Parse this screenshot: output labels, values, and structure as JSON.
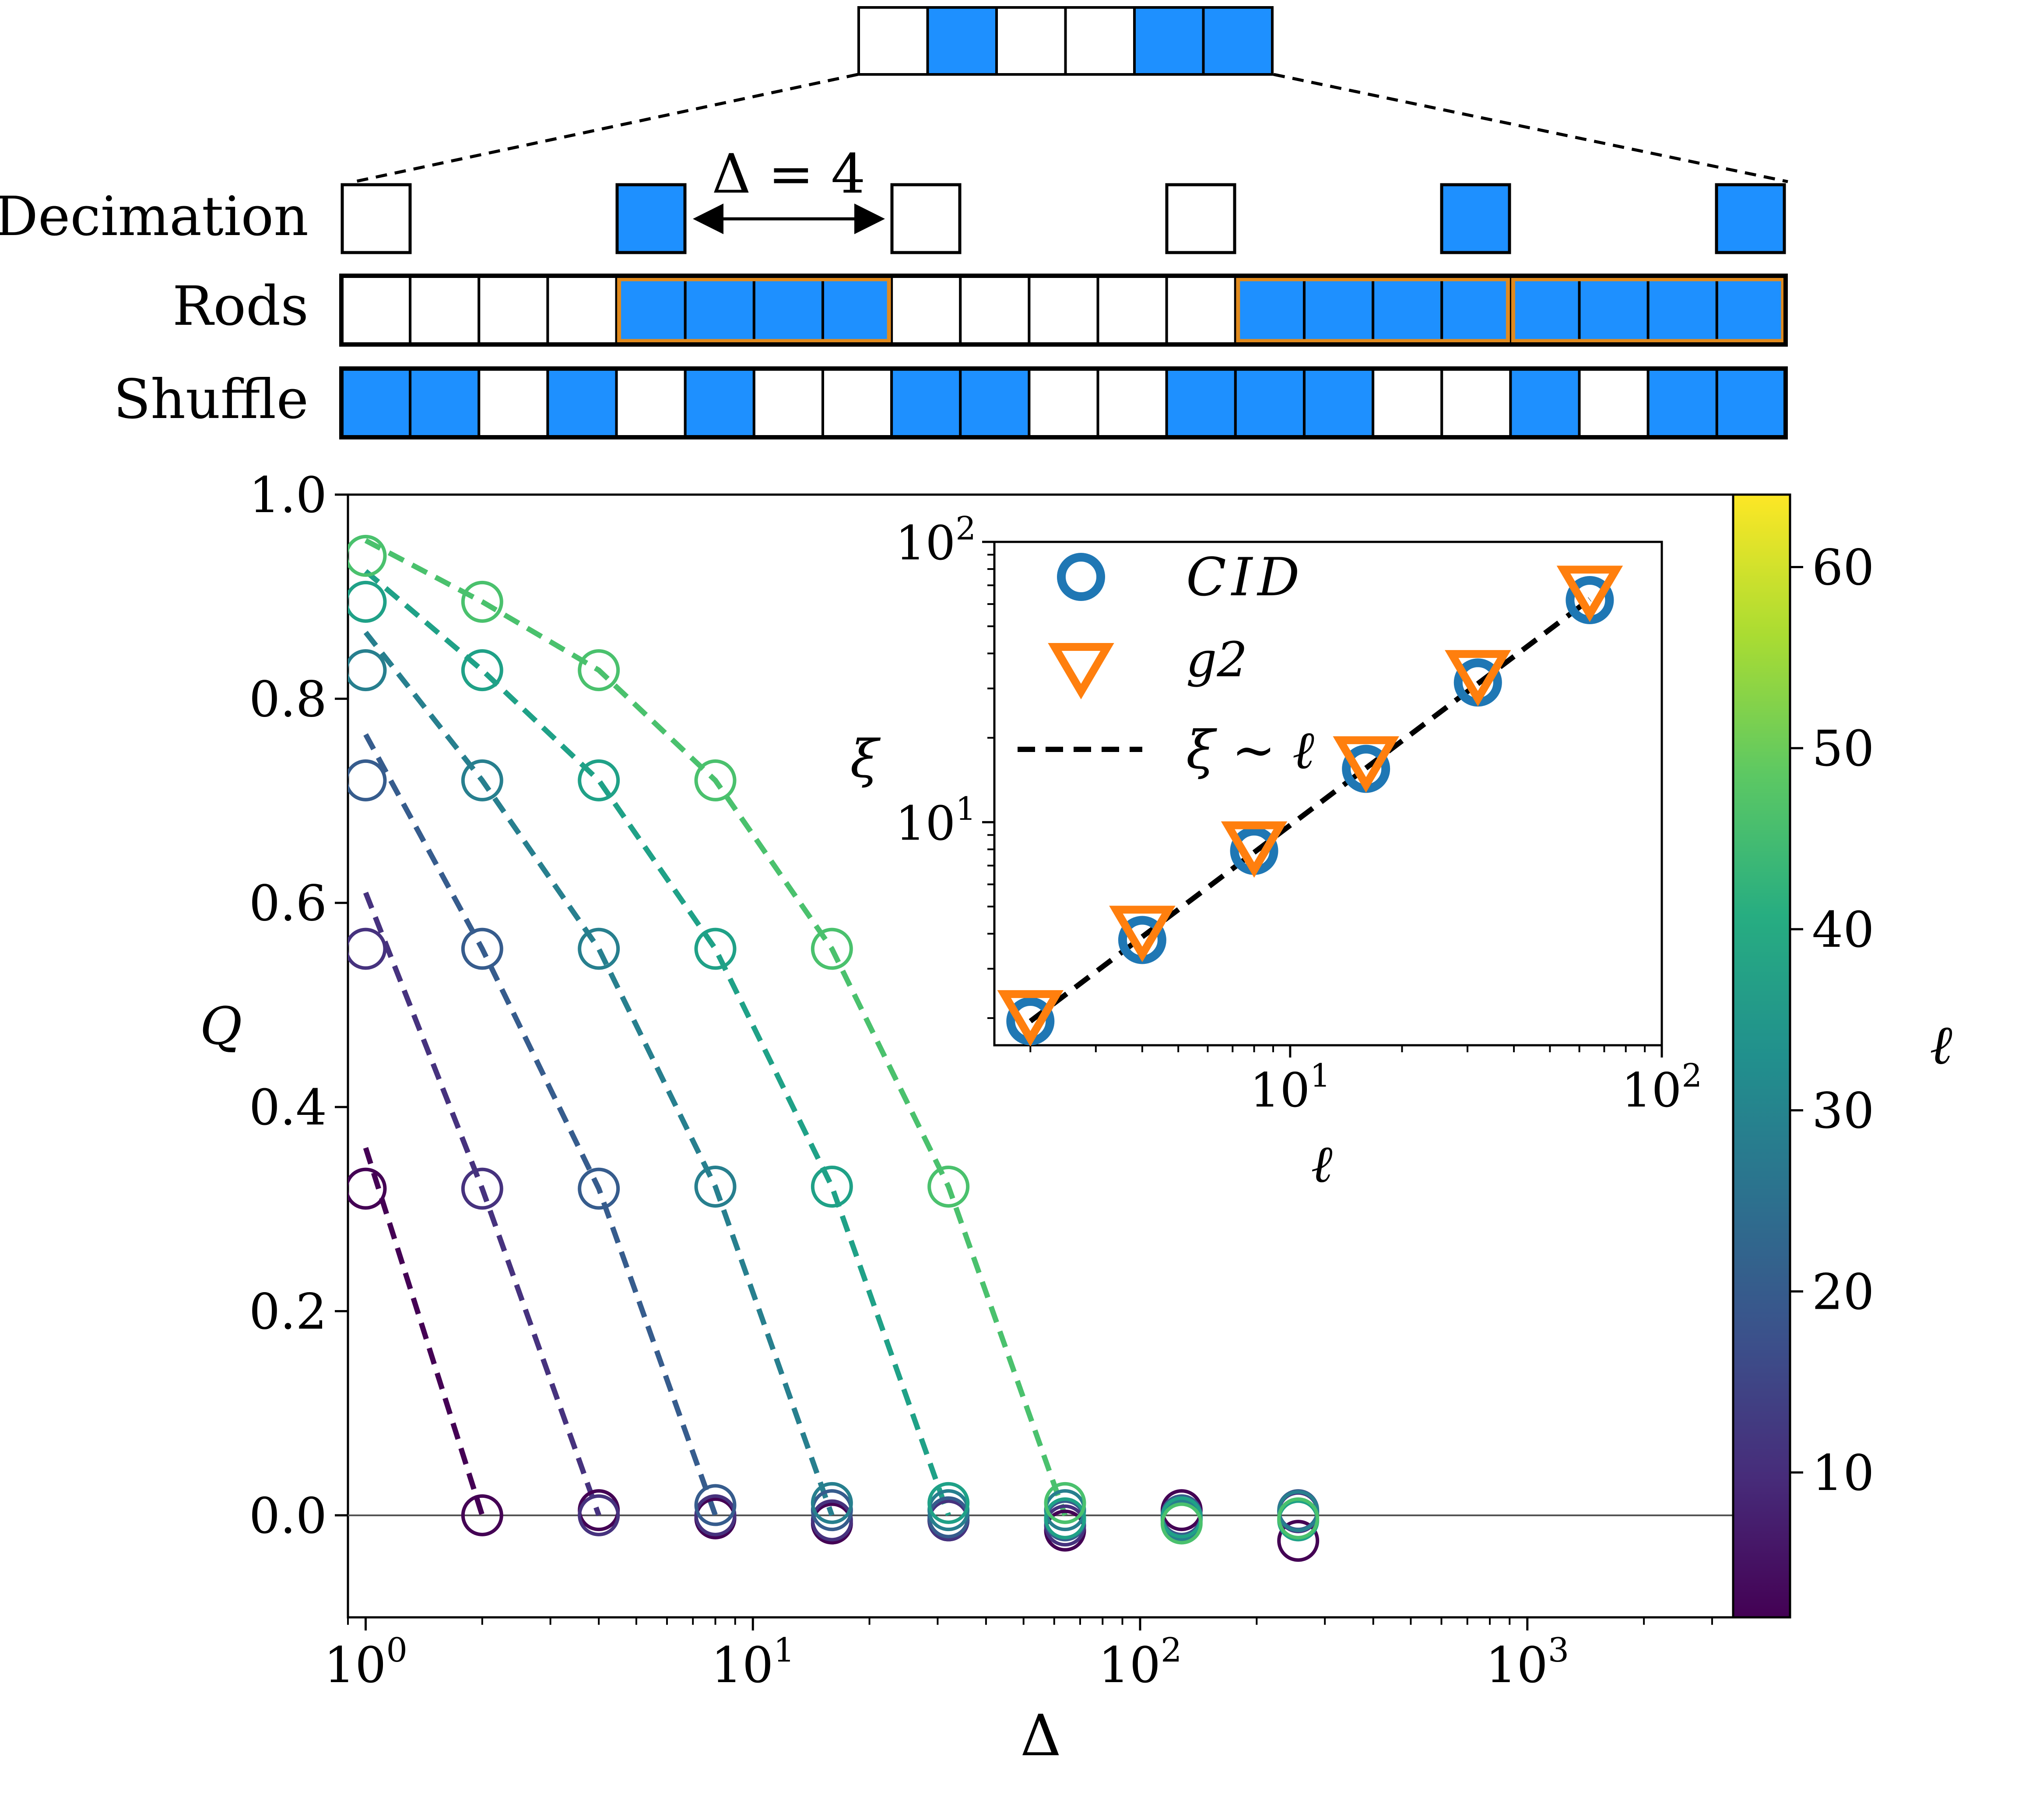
{
  "schematic": {
    "row_labels": [
      "Decimation",
      "Rods",
      "Shuffle"
    ],
    "delta_label": "Δ = 4",
    "top_sequence": [
      0,
      1,
      0,
      0,
      1,
      1
    ],
    "decimation_sequence": [
      0,
      1,
      0,
      0,
      1,
      1
    ],
    "rods_sequence": [
      0,
      0,
      0,
      0,
      1,
      1,
      1,
      1,
      0,
      0,
      0,
      0,
      0,
      1,
      1,
      1,
      1,
      1,
      1,
      1,
      1
    ],
    "rods_groups": [
      [
        4,
        7
      ],
      [
        13,
        16
      ],
      [
        17,
        20
      ]
    ],
    "shuffle_sequence": [
      1,
      1,
      0,
      1,
      0,
      1,
      0,
      0,
      1,
      1,
      0,
      0,
      1,
      1,
      1,
      0,
      0,
      1,
      0,
      1,
      1
    ],
    "colors": {
      "filled": "#1e90ff",
      "empty": "#ffffff",
      "rod_outline": "#e08a1e"
    }
  },
  "chart_data": [
    {
      "type": "scatter",
      "name": "main",
      "xlabel": "Δ",
      "ylabel": "Q",
      "xscale": "log",
      "xlim": [
        0.9,
        3400
      ],
      "ylim": [
        -0.1,
        1.0
      ],
      "xticks": [
        {
          "v": 1,
          "label": "10",
          "exp": "0"
        },
        {
          "v": 10,
          "label": "10",
          "exp": "1"
        },
        {
          "v": 100,
          "label": "10",
          "exp": "2"
        },
        {
          "v": 1000,
          "label": "10",
          "exp": "3"
        }
      ],
      "yticks": [
        "0.0",
        "0.2",
        "0.4",
        "0.6",
        "0.8",
        "1.0"
      ],
      "colorbar": {
        "label": "ℓ",
        "range": [
          2,
          64
        ],
        "ticks": [
          "10",
          "20",
          "30",
          "40",
          "50",
          "60"
        ]
      },
      "series": [
        {
          "ell": 2,
          "color": "#440154",
          "points": [
            [
              1,
              0.32
            ],
            [
              2,
              0.0
            ],
            [
              4,
              0.005
            ],
            [
              8,
              -0.003
            ],
            [
              16,
              -0.008
            ],
            [
              32,
              -0.005
            ],
            [
              64,
              -0.015
            ],
            [
              128,
              0.005
            ],
            [
              256,
              -0.025
            ]
          ],
          "fit": [
            [
              1,
              0.36
            ],
            [
              2,
              0.0
            ]
          ]
        },
        {
          "ell": 4,
          "color": "#46327e",
          "points": [
            [
              1,
              0.555
            ],
            [
              2,
              0.32
            ],
            [
              4,
              0.0
            ],
            [
              8,
              0.0
            ],
            [
              16,
              -0.005
            ],
            [
              32,
              -0.005
            ],
            [
              64,
              -0.01
            ],
            [
              128,
              -0.003
            ],
            [
              256,
              0.003
            ]
          ],
          "fit": [
            [
              1,
              0.61
            ],
            [
              2,
              0.32
            ],
            [
              4,
              0.0
            ]
          ]
        },
        {
          "ell": 8,
          "color": "#365c8d",
          "points": [
            [
              1,
              0.72
            ],
            [
              2,
              0.555
            ],
            [
              4,
              0.32
            ],
            [
              8,
              0.01
            ],
            [
              16,
              0.005
            ],
            [
              32,
              -0.002
            ],
            [
              64,
              -0.005
            ],
            [
              128,
              0.0
            ],
            [
              256,
              0.005
            ]
          ],
          "fit": [
            [
              1,
              0.765
            ],
            [
              2,
              0.555
            ],
            [
              4,
              0.32
            ],
            [
              8,
              0.0
            ]
          ]
        },
        {
          "ell": 16,
          "color": "#277f8e",
          "points": [
            [
              1,
              0.828
            ],
            [
              2,
              0.72
            ],
            [
              4,
              0.555
            ],
            [
              8,
              0.322
            ],
            [
              16,
              0.012
            ],
            [
              32,
              0.005
            ],
            [
              64,
              0.005
            ],
            [
              128,
              -0.005
            ],
            [
              256,
              0.004
            ]
          ],
          "fit": [
            [
              1,
              0.865
            ],
            [
              2,
              0.72
            ],
            [
              4,
              0.555
            ],
            [
              8,
              0.322
            ],
            [
              16,
              0.0
            ]
          ]
        },
        {
          "ell": 32,
          "color": "#1fa187",
          "points": [
            [
              1,
              0.895
            ],
            [
              2,
              0.828
            ],
            [
              4,
              0.72
            ],
            [
              8,
              0.555
            ],
            [
              16,
              0.322
            ],
            [
              32,
              0.012
            ],
            [
              64,
              -0.003
            ],
            [
              128,
              -0.002
            ],
            [
              256,
              -0.005
            ]
          ],
          "fit": [
            [
              1,
              0.925
            ],
            [
              2,
              0.828
            ],
            [
              4,
              0.72
            ],
            [
              8,
              0.555
            ],
            [
              16,
              0.322
            ],
            [
              32,
              0.0
            ]
          ]
        },
        {
          "ell": 64,
          "color": "#4ac16d",
          "points": [
            [
              1,
              0.94
            ],
            [
              2,
              0.895
            ],
            [
              4,
              0.828
            ],
            [
              8,
              0.72
            ],
            [
              16,
              0.555
            ],
            [
              32,
              0.322
            ],
            [
              64,
              0.012
            ],
            [
              128,
              -0.008
            ],
            [
              256,
              -0.003
            ]
          ],
          "fit": [
            [
              1,
              0.955
            ],
            [
              2,
              0.895
            ],
            [
              4,
              0.828
            ],
            [
              8,
              0.72
            ],
            [
              16,
              0.555
            ],
            [
              32,
              0.322
            ],
            [
              64,
              0.0
            ]
          ]
        }
      ]
    },
    {
      "type": "scatter",
      "name": "inset",
      "xlabel": "ℓ",
      "ylabel": "ξ",
      "xscale": "log",
      "yscale": "log",
      "xlim": [
        1.6,
        100
      ],
      "ylim": [
        1.6,
        100
      ],
      "xticks": [
        {
          "v": 10,
          "label": "10",
          "exp": "1"
        },
        {
          "v": 100,
          "label": "10",
          "exp": "2"
        }
      ],
      "yticks": [
        {
          "v": 10,
          "label": "10",
          "exp": "1"
        },
        {
          "v": 100,
          "label": "10",
          "exp": "2"
        }
      ],
      "series": [
        {
          "name": "CID",
          "marker": "circle",
          "color": "#1f77b4",
          "x": [
            2,
            4,
            8,
            16,
            32,
            64
          ],
          "y": [
            1.95,
            3.8,
            7.9,
            15.5,
            31.5,
            62
          ]
        },
        {
          "name": "g2",
          "marker": "triangle-down",
          "color": "#ff7f0e",
          "x": [
            2,
            4,
            8,
            16,
            32,
            64
          ],
          "y": [
            2.05,
            4.1,
            8.2,
            16.5,
            33.5,
            67
          ]
        },
        {
          "name": "ξ ∼ ℓ",
          "marker": "dashed-line",
          "color": "#000000",
          "x": [
            2,
            64
          ],
          "y": [
            1.95,
            62.4
          ]
        }
      ],
      "legend_position": "upper-left"
    }
  ]
}
